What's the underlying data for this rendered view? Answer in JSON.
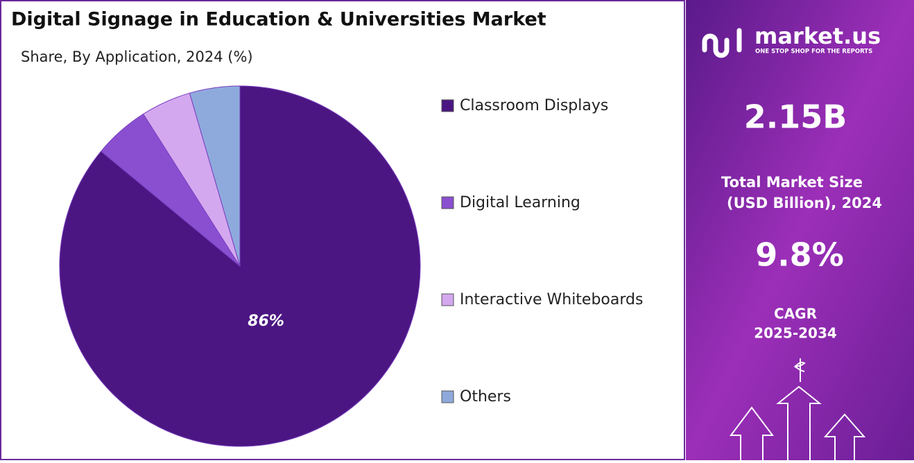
{
  "chart_data": {
    "type": "pie",
    "title": "Digital Signage in Education & Universities Market",
    "subtitle": "Share, By Application, 2024 (%)",
    "categories": [
      "Classroom Displays",
      "Digital Learning",
      "Interactive Whiteboards",
      "Others"
    ],
    "values": [
      86,
      5,
      4.5,
      4.5
    ],
    "value_labels": [
      "86%",
      null,
      null,
      null
    ],
    "colors": [
      "#4b1682",
      "#8a4fd0",
      "#d4a8ef",
      "#8eaadc"
    ]
  },
  "panel": {
    "brand": "market.us",
    "tagline": "ONE STOP SHOP FOR THE REPORTS",
    "market_size": "2.15B",
    "market_size_label_1": "Total Market Size",
    "market_size_label_2": "(USD Billion), 2024",
    "cagr": "9.8%",
    "cagr_label": "CAGR",
    "cagr_period": "2025-2034"
  }
}
